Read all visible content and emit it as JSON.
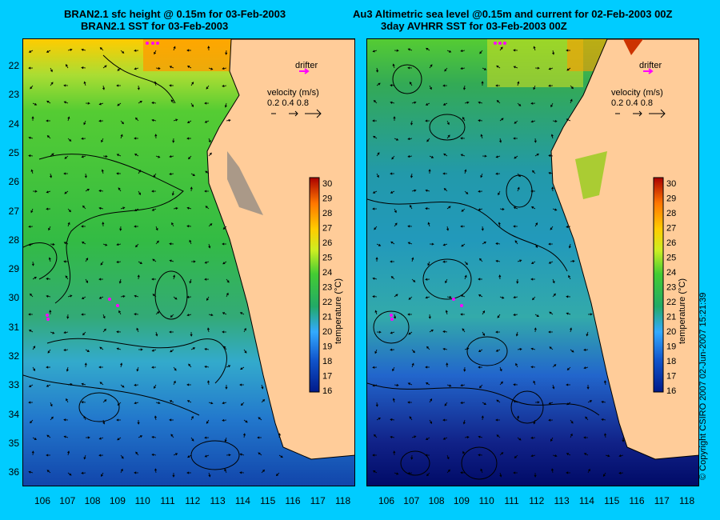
{
  "left_panel": {
    "title_line1": "BRAN2.1 sfc height @ 0.15m for 03-Feb-2003",
    "title_line2": "BRAN2.1 SST for 03-Feb-2003"
  },
  "right_panel": {
    "title_line1": "Au3 Altimetric sea level  @0.15m and current for 02-Feb-2003 00Z",
    "title_line2": "3day AVHRR SST for 03-Feb-2003 00Z"
  },
  "legend": {
    "drifter_label": "drifter",
    "velocity_label": "velocity (m/s)",
    "velocity_values": "0.2 0.4 0.8",
    "colorbar_label": "temperature (°C)",
    "colorbar_ticks": [
      "30",
      "29",
      "28",
      "27",
      "26",
      "25",
      "24",
      "23",
      "22",
      "21",
      "20",
      "19",
      "18",
      "17",
      "16"
    ]
  },
  "axes": {
    "latitudes": [
      "22",
      "23",
      "24",
      "25",
      "26",
      "27",
      "28",
      "29",
      "30",
      "31",
      "32",
      "33",
      "34",
      "35",
      "36"
    ],
    "longitudes": [
      "106",
      "107",
      "108",
      "109",
      "110",
      "111",
      "112",
      "113",
      "114",
      "115",
      "116",
      "117",
      "118"
    ]
  },
  "copyright": "© Copyright CSIRO 2007   02-Jun-2007 15:21:39",
  "colors": {
    "background": "#00ccff",
    "land": "#ffcc99",
    "drifter": "#ff00ff"
  }
}
